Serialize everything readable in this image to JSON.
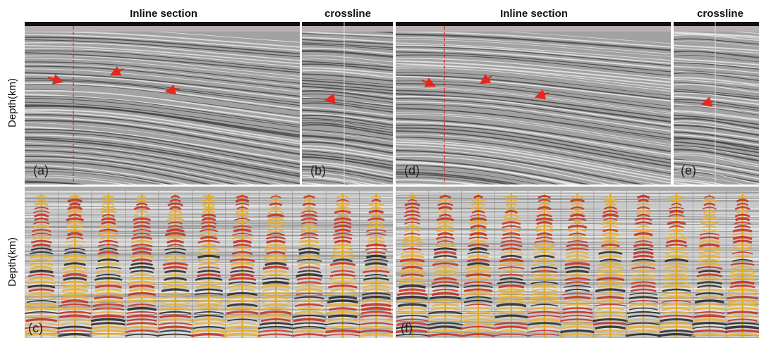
{
  "titles": [
    "Inline section",
    "crossline",
    "Inline section",
    "crossline"
  ],
  "y_labels": [
    "Depth(km)",
    "Depth(km)"
  ],
  "panel_labels": [
    "(a)",
    "(b)",
    "(c)",
    "(d)",
    "(e)",
    "(f)"
  ]
}
